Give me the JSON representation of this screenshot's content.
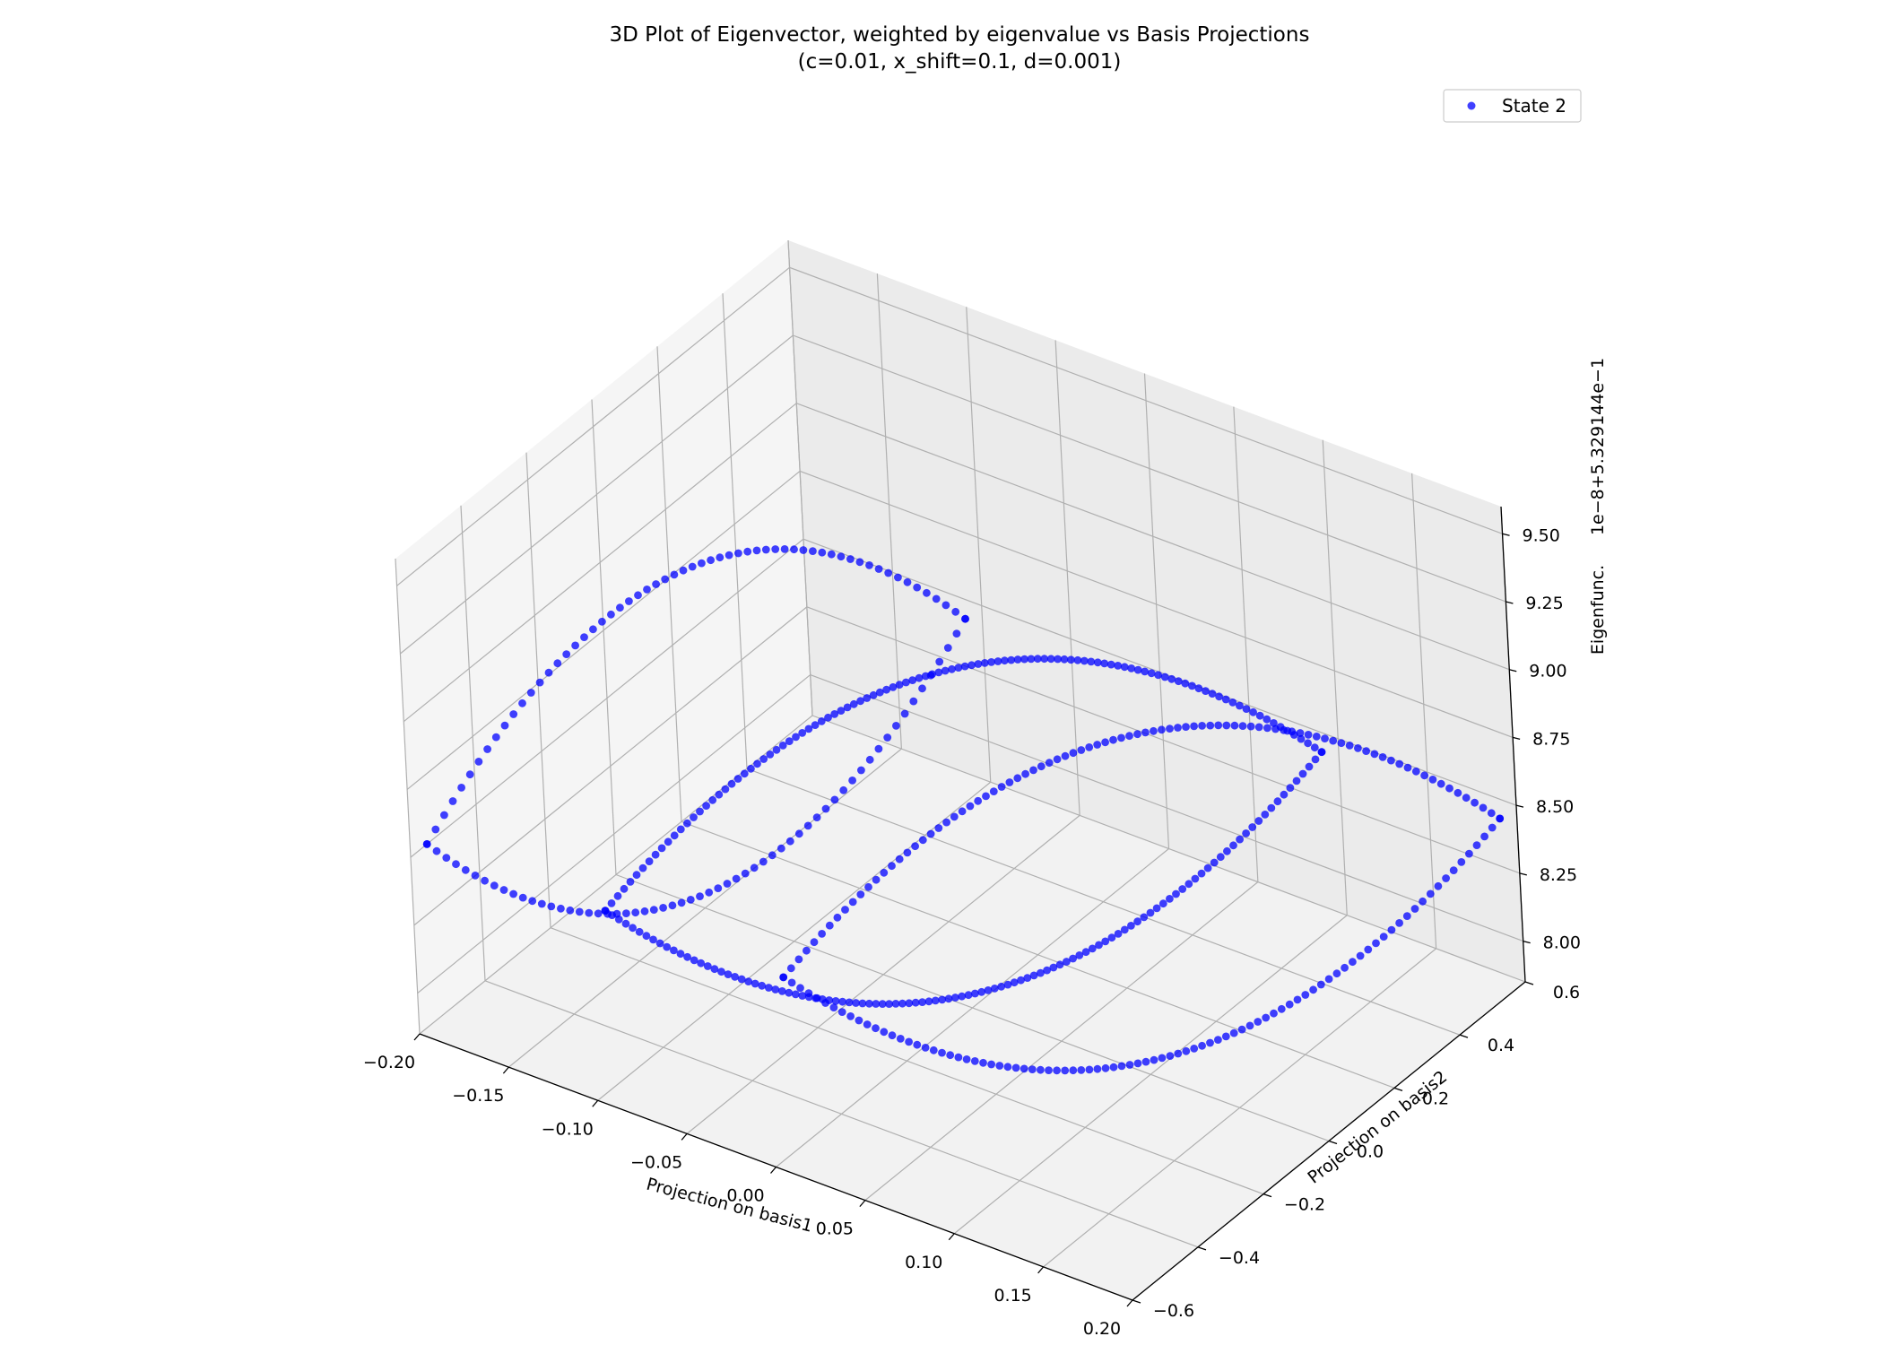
{
  "chart_data": {
    "type": "scatter",
    "projection": "3d",
    "title_line1": "3D Plot of Eigenvector, weighted by eigenvalue vs Basis Projections",
    "title_line2": "(c=0.01, x_shift=0.1, d=0.001)",
    "xlabel": "Projection on basis1",
    "ylabel": "Projection on basis2",
    "zlabel": "Eigenfunc.",
    "z_offset_label": "1e−8+5.329144e−1",
    "xlim": [
      -0.2,
      0.2
    ],
    "ylim": [
      -0.6,
      0.6
    ],
    "zlim": [
      7.85,
      9.6
    ],
    "xticks": [
      -0.2,
      -0.15,
      -0.1,
      -0.05,
      0.0,
      0.05,
      0.1,
      0.15,
      0.2
    ],
    "xtick_labels": [
      "−0.20",
      "−0.15",
      "−0.10",
      "−0.05",
      "0.00",
      "0.05",
      "0.10",
      "0.15",
      "0.20"
    ],
    "yticks": [
      -0.6,
      -0.4,
      -0.2,
      0.0,
      0.2,
      0.4,
      0.6
    ],
    "ytick_labels": [
      "−0.6",
      "−0.4",
      "−0.2",
      "0.0",
      "0.2",
      "0.4",
      "0.6"
    ],
    "zticks": [
      8.0,
      8.25,
      8.5,
      8.75,
      9.0,
      9.25,
      9.5
    ],
    "ztick_labels": [
      "8.00",
      "8.25",
      "8.50",
      "8.75",
      "9.00",
      "9.25",
      "9.50"
    ],
    "grid": true,
    "legend_position": "top-right",
    "series": [
      {
        "name": "State 2",
        "color": "#0000ff",
        "alpha": 0.75,
        "segments": [
          {
            "x": [
              -0.1,
              0.1
            ],
            "ypeak": 0.0,
            "yamp": 0.55,
            "z0": 8.5,
            "zamp": 0.6,
            "n": 110
          },
          {
            "x": [
              -0.1,
              0.1
            ],
            "ypeak": 0.0,
            "yamp": 0.55,
            "z0": 8.5,
            "zamp": -0.6,
            "n": 110
          },
          {
            "x": [
              0.0,
              0.2
            ],
            "ypeak": 0.0,
            "yamp": 0.55,
            "z0": 8.5,
            "zamp": 0.6,
            "n": 90
          },
          {
            "x": [
              0.0,
              0.2
            ],
            "ypeak": 0.0,
            "yamp": 0.55,
            "z0": 8.5,
            "zamp": -0.6,
            "n": 90
          },
          {
            "x": [
              -0.2,
              -0.1
            ],
            "ypeak": 0.0,
            "yamp": 0.55,
            "z0": 8.5,
            "zamp": 0.6,
            "n": 60
          },
          {
            "x": [
              -0.2,
              -0.1
            ],
            "ypeak": 0.0,
            "yamp": 0.55,
            "z0": 8.5,
            "zamp": -0.6,
            "n": 60
          }
        ]
      }
    ]
  }
}
